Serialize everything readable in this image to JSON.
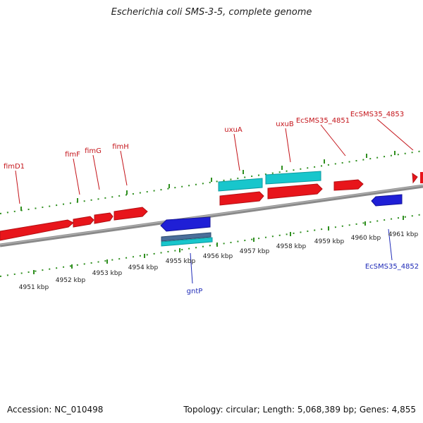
{
  "title": "Escherichia coli SMS-3-5, complete genome",
  "footer": {
    "accession": "Accession: NC_010498",
    "summary": "Topology: circular; Length: 5,068,389 bp; Genes: 4,855"
  },
  "colors": {
    "forward_gene": "#e8151b",
    "reverse_gene": "#1f1fd6",
    "feature_cyan": "#18c6cc",
    "feature_steel": "#4b6f9a",
    "backbone": "#8a8a8a",
    "ticks": "#2f8f1f",
    "forward_label": "#c4141a",
    "reverse_label": "#1f2bb8"
  },
  "forward_labels": [
    "fimD1",
    "fimF",
    "fimG",
    "fimH",
    "uxuA",
    "uxuB",
    "EcSMS35_4851",
    "EcSMS35_4853"
  ],
  "reverse_labels": [
    "gntP",
    "EcSMS35_4852"
  ],
  "kbp_labels": [
    "4951 kbp",
    "4952 kbp",
    "4953 kbp",
    "4954 kbp",
    "4955 kbp",
    "4956 kbp",
    "4957 kbp",
    "4958 kbp",
    "4959 kbp",
    "4960 kbp",
    "4961 kbp"
  ]
}
